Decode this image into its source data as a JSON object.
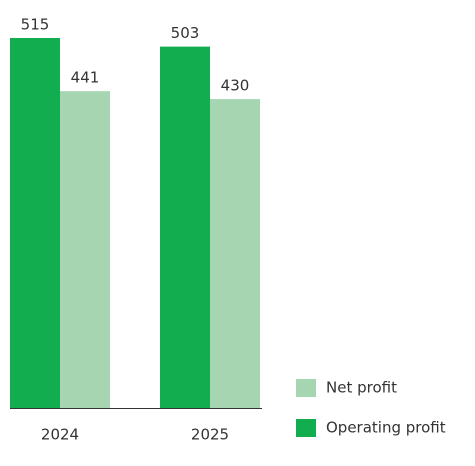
{
  "chart_data": {
    "type": "bar",
    "categories": [
      "2024",
      "2025"
    ],
    "series": [
      {
        "name": "Operating profit",
        "color": "#12ad4f",
        "values": [
          515,
          503
        ]
      },
      {
        "name": "Net profit",
        "color": "#a5d6b1",
        "values": [
          441,
          430
        ]
      }
    ],
    "legend": "bottom-right"
  }
}
